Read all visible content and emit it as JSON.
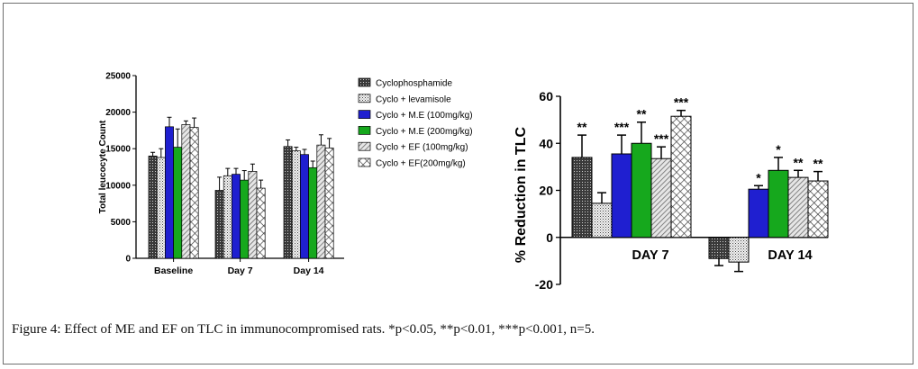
{
  "caption": {
    "label": "Figure 4:",
    "text": "Effect of ME and EF on TLC in immunocompromised rats. *p<0.05, **p<0.01, ***p<0.001, n=5."
  },
  "colors": {
    "m_e_100": "#1f1fd0",
    "m_e_200": "#16a81d",
    "dark_pattern": "#444444",
    "light_pattern": "#9a9a9a"
  },
  "chart_data": [
    {
      "type": "bar",
      "title": "",
      "xlabel": "",
      "ylabel": "Total leucocyte Count",
      "ylim": [
        0,
        25000
      ],
      "yticks": [
        "0",
        "5000",
        "10000",
        "15000",
        "20000",
        "25000"
      ],
      "categories": [
        "Baseline",
        "Day 7",
        "Day 14"
      ],
      "legend_position": "right",
      "series": [
        {
          "name": "Cyclophosphamide",
          "pattern": "dots-dark",
          "values": [
            14000,
            9300,
            15300
          ],
          "errors": [
            500,
            1800,
            900
          ]
        },
        {
          "name": "Cyclo + levamisole",
          "pattern": "dots-light",
          "values": [
            13800,
            11300,
            14700
          ],
          "errors": [
            1200,
            1000,
            500
          ]
        },
        {
          "name": "Cyclo + M.E (100mg/kg)",
          "pattern": "solid-blue",
          "values": [
            18000,
            11500,
            14200
          ],
          "errors": [
            1300,
            800,
            700
          ]
        },
        {
          "name": "Cyclo + M.E (200mg/kg)",
          "pattern": "solid-green",
          "values": [
            15200,
            10700,
            12400
          ],
          "errors": [
            2500,
            1300,
            900
          ]
        },
        {
          "name": "Cyclo + EF (100mg/kg)",
          "pattern": "hatch",
          "values": [
            18300,
            11900,
            15500
          ],
          "errors": [
            500,
            1000,
            1400
          ]
        },
        {
          "name": "Cyclo + EF(200mg/kg)",
          "pattern": "crosshatch",
          "values": [
            17900,
            9600,
            15100
          ],
          "errors": [
            1300,
            1100,
            1300
          ]
        }
      ]
    },
    {
      "type": "bar",
      "title": "",
      "xlabel": "",
      "ylabel": "% Reduction in TLC",
      "ylim": [
        -20,
        60
      ],
      "yticks": [
        "-20",
        "0",
        "20",
        "40",
        "60"
      ],
      "categories": [
        "DAY 7",
        "DAY 14"
      ],
      "series": [
        {
          "name": "Cyclophosphamide",
          "pattern": "dots-dark",
          "values": [
            34,
            -9
          ],
          "errors": [
            9.5,
            3
          ],
          "significance": [
            "**",
            ""
          ]
        },
        {
          "name": "Cyclo + levamisole",
          "pattern": "dots-light",
          "values": [
            14.5,
            -10.5
          ],
          "errors": [
            4.5,
            4
          ],
          "significance": [
            "",
            ""
          ]
        },
        {
          "name": "Cyclo + M.E (100mg/kg)",
          "pattern": "solid-blue",
          "values": [
            35.5,
            20.5
          ],
          "errors": [
            8,
            1.5
          ],
          "significance": [
            "***",
            "*"
          ]
        },
        {
          "name": "Cyclo + M.E (200mg/kg)",
          "pattern": "solid-green",
          "values": [
            40,
            28.5
          ],
          "errors": [
            9,
            5.5
          ],
          "significance": [
            "**",
            "*"
          ]
        },
        {
          "name": "Cyclo + EF (100mg/kg)",
          "pattern": "hatch",
          "values": [
            33.5,
            25.5
          ],
          "errors": [
            5,
            3
          ],
          "significance": [
            "***",
            "**"
          ]
        },
        {
          "name": "Cyclo + EF(200mg/kg)",
          "pattern": "crosshatch",
          "values": [
            51.5,
            24
          ],
          "errors": [
            2.5,
            4
          ],
          "significance": [
            "***",
            "**"
          ]
        }
      ]
    }
  ]
}
